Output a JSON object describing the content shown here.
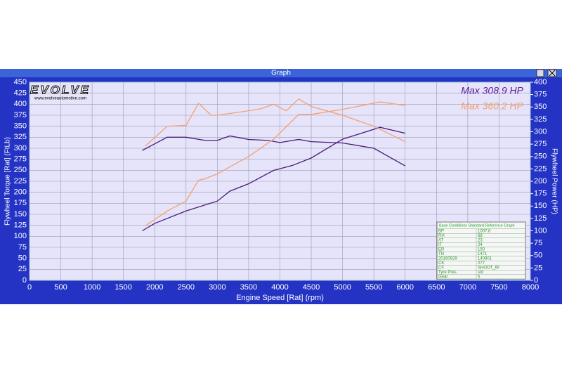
{
  "window": {
    "title": "Graph"
  },
  "logo": {
    "text": "EVOLVE",
    "url": "www.evolveautomotive.com"
  },
  "info_table": {
    "header": "Base Conditions Standard Reference Graph",
    "rows": [
      [
        "BP",
        "1007.8"
      ],
      [
        "RH",
        "68"
      ],
      [
        "AT",
        "23"
      ],
      [
        "IT",
        "24"
      ],
      [
        "ER",
        "150"
      ],
      [
        "TN",
        "1471"
      ],
      [
        "20160929",
        "140801"
      ],
      [
        "CK",
        "277"
      ],
      [
        "CF",
        "SHOOT_6F"
      ],
      [
        "Tyre Pres.",
        "std"
      ],
      [
        "Gear",
        "5"
      ]
    ]
  },
  "chart_data": {
    "type": "line",
    "xlabel": "Engine Speed [Rat] (rpm)",
    "ylabel": "Flywheel Torque [Rat] (FtLb)",
    "y2label": "Flywheel Power (HP)",
    "xlim": [
      0,
      8000
    ],
    "xticks": [
      0,
      500,
      1000,
      1500,
      2000,
      2500,
      3000,
      3500,
      4000,
      4500,
      5000,
      5500,
      6000,
      6500,
      7000,
      7500,
      8000
    ],
    "ylim": [
      0,
      450
    ],
    "yticks": [
      0,
      25,
      50,
      75,
      100,
      125,
      150,
      175,
      200,
      225,
      250,
      275,
      300,
      325,
      350,
      375,
      400,
      425,
      450
    ],
    "y2lim": [
      0,
      400
    ],
    "y2ticks": [
      0,
      25,
      50,
      75,
      100,
      125,
      150,
      175,
      200,
      225,
      250,
      275,
      300,
      325,
      350,
      375,
      400
    ],
    "grid": true,
    "annotations": [
      {
        "text": "Max 308.9 HP",
        "color": "#5a1a9a"
      },
      {
        "text": "Max 360.2 HP",
        "color": "#f4a070"
      }
    ],
    "series": [
      {
        "color": "#4a1a7a",
        "x": [
          1800,
          2000,
          2200,
          2500,
          2800,
          3000,
          3200,
          3500,
          3800,
          4000,
          4300,
          4500,
          5000,
          5500,
          6000
        ],
        "values": [
          295,
          310,
          325,
          325,
          318,
          318,
          328,
          320,
          318,
          313,
          320,
          315,
          312,
          300,
          260
        ]
      },
      {
        "color": "#4a1a7a",
        "axis": "y2",
        "x": [
          1800,
          2000,
          2500,
          3000,
          3200,
          3500,
          3900,
          4200,
          4500,
          5000,
          5600,
          6000
        ],
        "values": [
          100,
          115,
          140,
          160,
          180,
          195,
          222,
          232,
          247,
          285,
          308.9,
          297
        ]
      },
      {
        "color": "#f4a070",
        "x": [
          1850,
          2200,
          2500,
          2700,
          2900,
          3000,
          3500,
          3700,
          3900,
          4100,
          4300,
          4500,
          5000,
          5500,
          6000
        ],
        "values": [
          305,
          350,
          352,
          402,
          375,
          375,
          385,
          390,
          400,
          385,
          412,
          395,
          375,
          350,
          315
        ]
      },
      {
        "color": "#f4a070",
        "axis": "y2",
        "x": [
          1850,
          2200,
          2500,
          2700,
          2800,
          3000,
          3500,
          3900,
          4300,
          4500,
          5000,
          5600,
          6000
        ],
        "values": [
          110,
          140,
          160,
          202,
          205,
          215,
          250,
          285,
          335,
          335,
          345,
          360.2,
          353
        ]
      }
    ]
  }
}
